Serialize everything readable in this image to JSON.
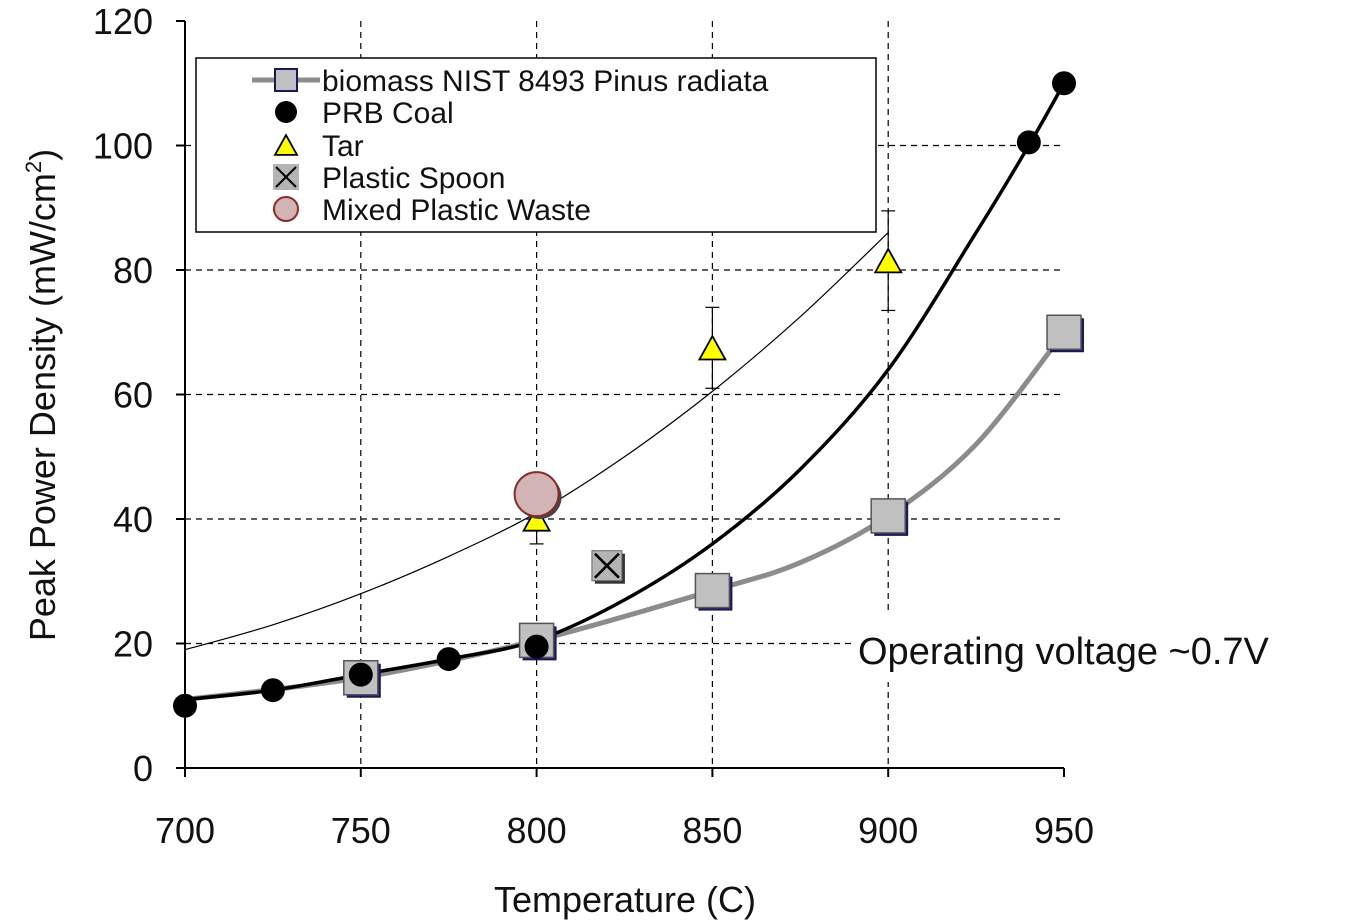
{
  "chart_data": {
    "type": "scatter",
    "xlabel": "Temperature (C)",
    "ylabel": "Peak Power Density (mW/cm",
    "ylabel_sup": "2",
    "ylabel_close": ")",
    "xlim": [
      700,
      950
    ],
    "ylim": [
      0,
      120
    ],
    "xticks": [
      700,
      750,
      800,
      850,
      900,
      950
    ],
    "yticks": [
      0,
      20,
      40,
      60,
      80,
      100,
      120
    ],
    "grid": "dashed at ticks 750-900 and 20-100",
    "legend_position": "top-left",
    "annotation": "Operating voltage ~0.7V",
    "colors": {
      "biomass": "#c0c0c0",
      "biomass_line": "#8c8c8c",
      "coal": "#000000",
      "tar": "#ffff00",
      "spoon": "#b4b4b4",
      "mixed_plastic": "#d2b4b4",
      "mixed_plastic_edge": "#8b2a2a"
    },
    "series": [
      {
        "name": "biomass NIST 8493 Pinus radiata",
        "marker": "square",
        "x": [
          750,
          800,
          850,
          900,
          950
        ],
        "y": [
          14.5,
          20.5,
          28.5,
          40.5,
          70
        ]
      },
      {
        "name": "PRB Coal",
        "marker": "circle",
        "x": [
          700,
          725,
          750,
          775,
          800,
          940,
          950
        ],
        "y": [
          10,
          12.5,
          15,
          17.5,
          19.5,
          100.5,
          110
        ]
      },
      {
        "name": "Tar",
        "marker": "triangle",
        "x": [
          800,
          850,
          900
        ],
        "y": [
          40,
          67.5,
          81.5
        ],
        "error": [
          4,
          6.5,
          8
        ]
      },
      {
        "name": "Plastic Spoon",
        "marker": "x-square",
        "x": [
          820
        ],
        "y": [
          32.5
        ]
      },
      {
        "name": "Mixed Plastic Waste",
        "marker": "big-circle",
        "x": [
          800
        ],
        "y": [
          44
        ]
      }
    ],
    "fit_curves": [
      {
        "for": "biomass NIST 8493 Pinus radiata",
        "x": [
          700,
          750,
          800,
          850,
          875,
          900,
          925,
          950
        ],
        "y": [
          11,
          14.5,
          20.5,
          28.5,
          33,
          40.5,
          52,
          70
        ]
      },
      {
        "for": "PRB Coal",
        "x": [
          700,
          725,
          750,
          775,
          800,
          825,
          850,
          875,
          900,
          925,
          940,
          950
        ],
        "y": [
          11,
          12.5,
          15,
          17.5,
          20.5,
          27,
          36,
          48,
          64,
          86,
          100,
          110
        ]
      },
      {
        "for": "Tar",
        "x": [
          700,
          725,
          750,
          775,
          800,
          825,
          850,
          875,
          900
        ],
        "y": [
          19,
          23,
          28,
          34,
          41,
          50,
          60.5,
          72.5,
          86
        ]
      }
    ]
  }
}
